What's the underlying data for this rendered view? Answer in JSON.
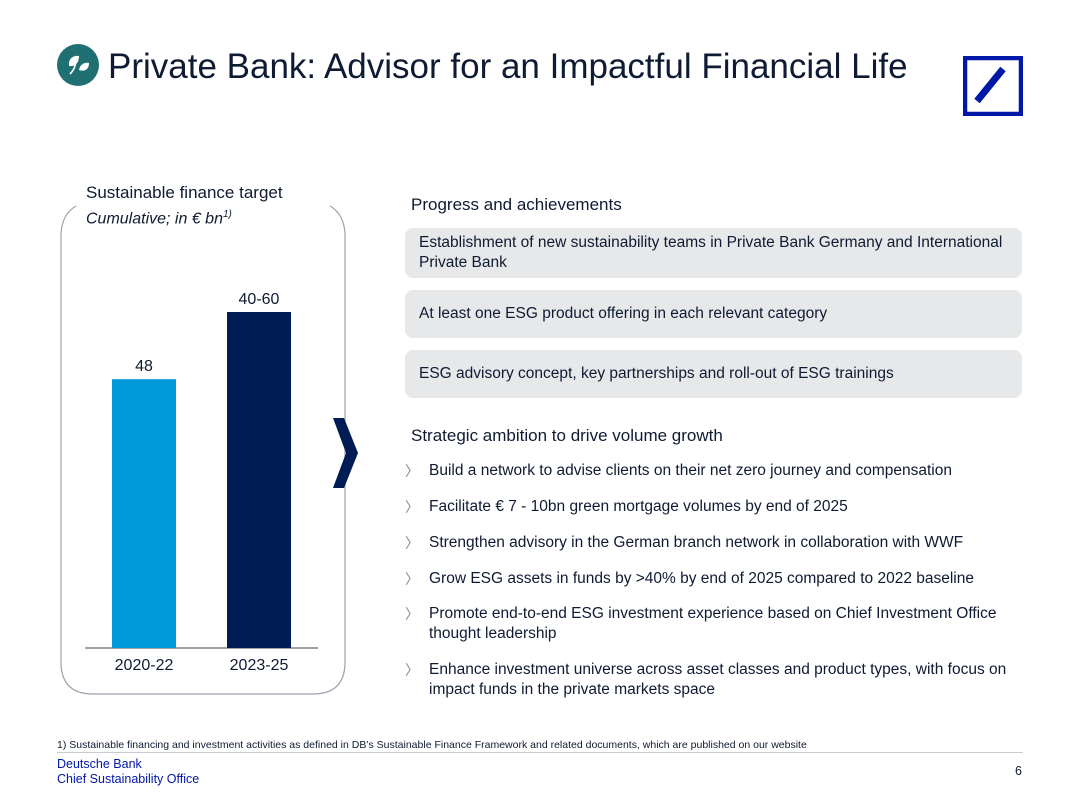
{
  "header": {
    "title_bold": "Private Bank:",
    "title_rest": "Advisor for an Impactful Financial Life",
    "icon": "leaf-icon",
    "logo": "deutsche-bank-logo"
  },
  "chart_data": {
    "type": "bar",
    "title": "Sustainable finance target",
    "subtitle": "Cumulative; in € bn",
    "subtitle_footnote": "1)",
    "categories": [
      "2020-22",
      "2023-25"
    ],
    "values": [
      48,
      60
    ],
    "data_labels": [
      "48",
      "40-60"
    ],
    "colors": [
      "#0099da",
      "#001c54"
    ],
    "ylim": [
      0,
      70
    ],
    "grid": false,
    "legend": "none"
  },
  "progress": {
    "heading": "Progress and achievements",
    "items": [
      {
        "text": "Establishment of new sustainability teams in Private Bank Germany and International Private Bank"
      },
      {
        "text": "At least one ESG product offering in each relevant category"
      },
      {
        "text": "ESG advisory concept, key partnerships and roll-out of ESG trainings"
      }
    ]
  },
  "ambition": {
    "heading": "Strategic ambition to drive volume growth",
    "marker": "〉",
    "items": [
      {
        "text": "Build a network to advise clients on their net zero journey and compensation"
      },
      {
        "text": "Facilitate € 7 - 10bn green mortgage volumes by end of 2025"
      },
      {
        "text": "Strengthen advisory in the German branch network in collaboration with WWF"
      },
      {
        "text": "Grow ESG assets in funds by >40% by end of 2025 compared to 2022 baseline"
      },
      {
        "text": "Promote end-to-end ESG investment experience based on Chief Investment Office thought leadership"
      },
      {
        "text": "Enhance investment universe across asset classes and product types, with focus on impact funds in the private markets space"
      }
    ]
  },
  "footer": {
    "footnote": "1) Sustainable financing and investment activities as defined in DB’s Sustainable Finance Framework and related documents, which are published on our website",
    "org_line1": "Deutsche Bank",
    "org_line2": "Chief Sustainability Office",
    "page_number": "6"
  },
  "colors": {
    "brand_blue": "#0018a8",
    "navy": "#001c54",
    "light_blue": "#0099da",
    "teal_badge": "#1f6f73",
    "box_bg": "#e6e8e9"
  }
}
